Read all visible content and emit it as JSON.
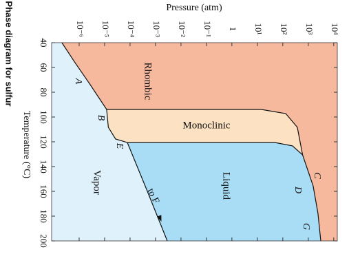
{
  "chart_data": {
    "type": "phase-diagram",
    "title": "Phase diagram for sulfur",
    "x_label": "Pressure (atm)",
    "y_label": "Temperature (°C)",
    "log_x": true,
    "xlim": [
      8.3e-08,
      13800
    ],
    "xticks": [
      {
        "value": 1e-06,
        "label": "10⁻⁶"
      },
      {
        "value": 1e-05,
        "label": "10⁻⁵"
      },
      {
        "value": 0.0001,
        "label": "10⁻⁴"
      },
      {
        "value": 0.001,
        "label": "10⁻³"
      },
      {
        "value": 0.01,
        "label": "10⁻²"
      },
      {
        "value": 0.1,
        "label": "10⁻¹"
      },
      1,
      {
        "value": 10,
        "label": "10¹"
      },
      {
        "value": 100,
        "label": "10²"
      },
      {
        "value": 1000,
        "label": "10³"
      },
      {
        "value": 10000,
        "label": "10⁴"
      }
    ],
    "ylim": [
      40,
      200
    ],
    "yticks": [
      40,
      60,
      80,
      100,
      120,
      140,
      160,
      180,
      200
    ],
    "colors": {
      "rhombic": "#f7b99e",
      "monoclinic": "#fce1c2",
      "liquid": "#a9dcf5",
      "vapor": "#dff1fb",
      "line": "#111111"
    },
    "curves": [
      {
        "pressure": [
          2.1e-07,
          7.2e-07,
          2.6e-06,
          1.2e-05
        ],
        "temperature": [
          40,
          56.7,
          73.3,
          93.9
        ]
      },
      {
        "pressure": [
          1.2e-05,
          1.4e-05,
          2.7e-05,
          7.8e-05
        ],
        "temperature": [
          93.9,
          108.3,
          117.8,
          120.6
        ]
      },
      {
        "pressure": [
          7.8e-05,
          0.00048,
          0.0029
        ],
        "temperature": [
          120.6,
          160,
          200
        ]
      },
      {
        "pressure": [
          1.2e-05,
          14,
          130,
          370,
          600
        ],
        "temperature": [
          93.9,
          93.9,
          97.2,
          108.3,
          130.6
        ]
      },
      {
        "pressure": [
          7.8e-05,
          50,
          240,
          600
        ],
        "temperature": [
          120.6,
          120.6,
          123.3,
          130.6
        ]
      },
      {
        "pressure": [
          600,
          1550,
          2400,
          3100
        ],
        "temperature": [
          130.6,
          155.6,
          177.8,
          200
        ]
      }
    ],
    "arrow_end": {
      "pressure": 0.0017,
      "temperature": 184.4
    },
    "region_labels": [
      "Rhombic",
      "Monoclinic",
      "Liquid",
      "Vapor"
    ],
    "point_labels": [
      "A",
      "B",
      "E",
      "C",
      "D",
      "G"
    ],
    "arrow_label": "to F"
  }
}
